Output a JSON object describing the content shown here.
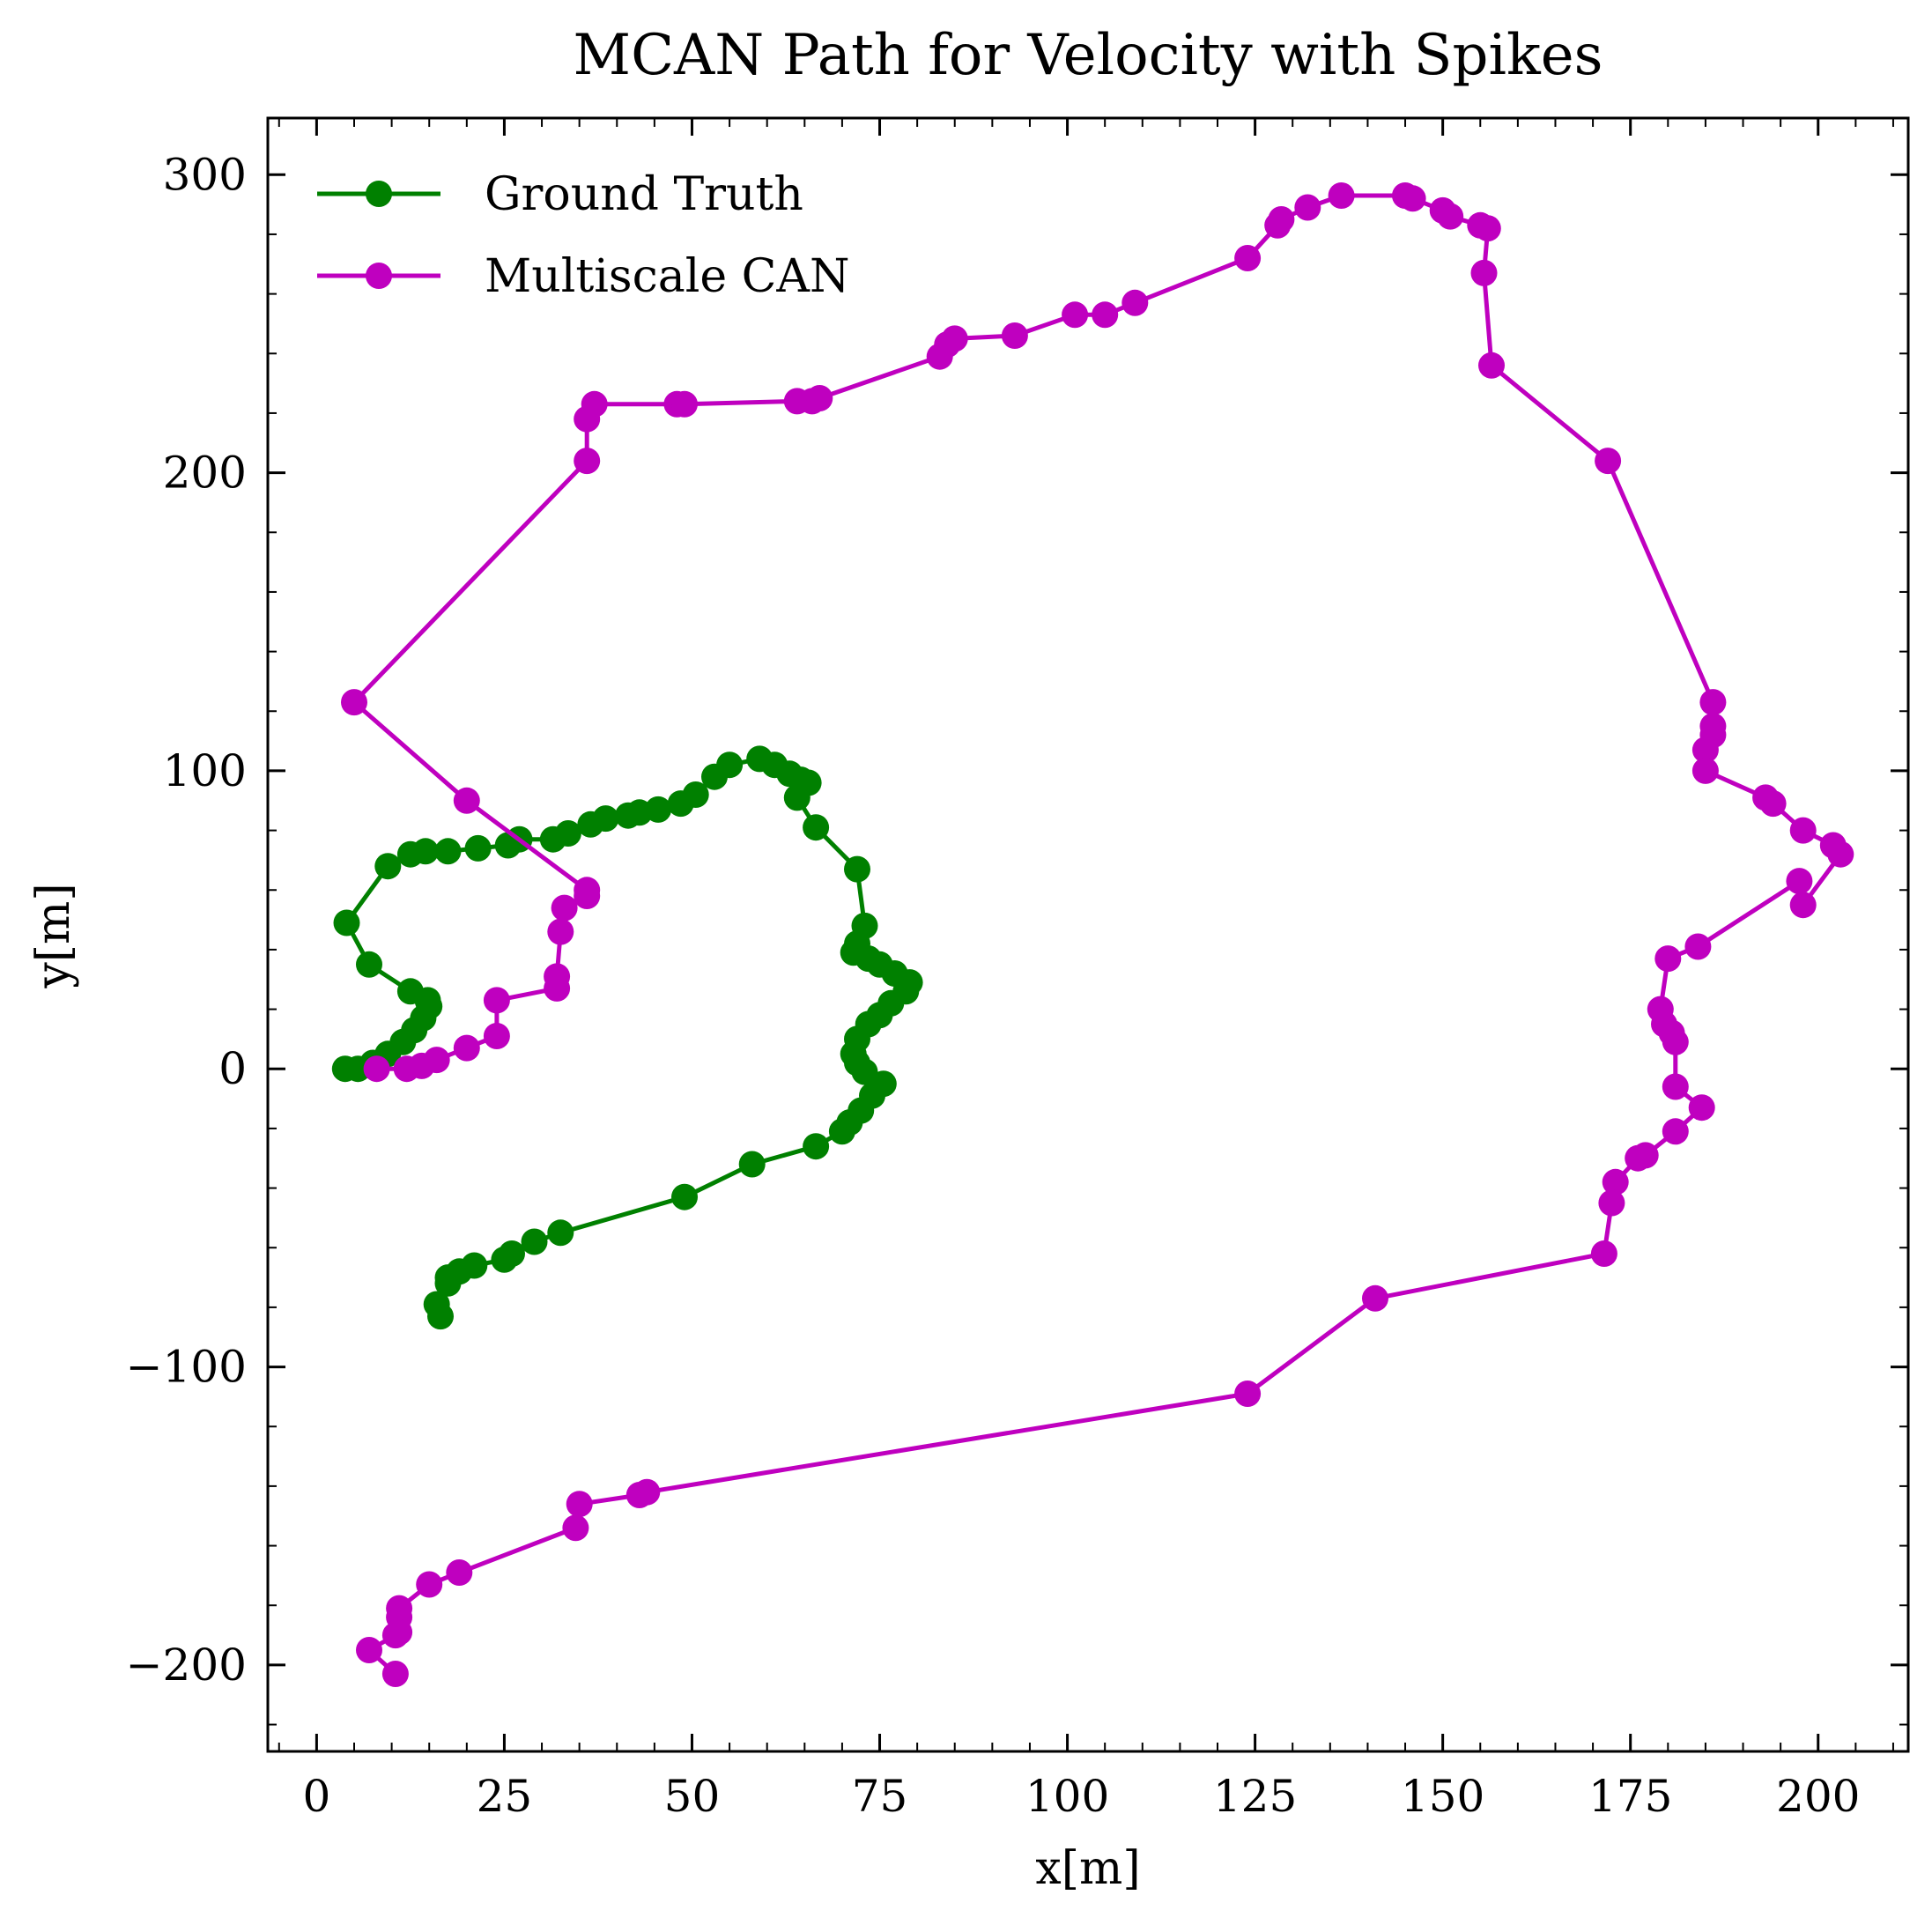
{
  "colors": {
    "ground_truth": "#008000",
    "multiscale_can": "#bf00bf",
    "axes": "#000000",
    "background": "#ffffff"
  },
  "chart_data": {
    "type": "line",
    "title": "MCAN Path for Velocity with Spikes",
    "xlabel": "x[m]",
    "ylabel": "y[m]",
    "xlim": [
      -6.5,
      212
    ],
    "ylim": [
      -229,
      319
    ],
    "xticks": [
      0,
      25,
      50,
      75,
      100,
      125,
      150,
      175,
      200
    ],
    "xtick_labels": [
      "0",
      "25",
      "50",
      "75",
      "100",
      "125",
      "150",
      "175",
      "200"
    ],
    "yticks": [
      -200,
      -100,
      0,
      100,
      200,
      300
    ],
    "ytick_labels": [
      "−200",
      "−100",
      "0",
      "100",
      "200",
      "300"
    ],
    "grid": false,
    "legend_position": "top-left",
    "markers": true,
    "series": [
      {
        "name": "Ground Truth",
        "color": "#008000",
        "x": [
          3.8,
          5.5,
          7.5,
          9.5,
          11.5,
          13.0,
          14.2,
          15.0,
          14.8,
          12.5,
          7.0,
          4.0,
          9.5,
          12.5,
          14.5,
          17.5,
          21.5,
          25.5,
          27.0,
          31.5,
          33.5,
          36.5,
          38.5,
          41.5,
          43.0,
          45.5,
          48.5,
          50.5,
          53.0,
          55.0,
          59.0,
          61.0,
          63.0,
          64.5,
          65.5,
          64.0,
          66.5,
          72.0,
          73.0,
          72.0,
          71.5,
          73.5,
          75.0,
          77.0,
          79.0,
          78.5,
          76.5,
          75.0,
          73.5,
          72.0,
          71.5,
          72.0,
          73.0,
          75.5,
          74.0,
          72.5,
          71.0,
          70.0,
          66.5,
          58.0,
          49.0,
          32.5,
          29.0,
          26.0,
          25.0,
          21.0,
          19.0,
          17.5,
          17.5,
          16.0,
          16.5
        ],
        "y": [
          0,
          0,
          2,
          5,
          9,
          13,
          17,
          21,
          23,
          26,
          35,
          49,
          68,
          72,
          73,
          73,
          74,
          75,
          77,
          77,
          79,
          82,
          84,
          85,
          86,
          87,
          89,
          92,
          98,
          102,
          104,
          102,
          99,
          97,
          96,
          91,
          81,
          67,
          48,
          42,
          39,
          37,
          35,
          32,
          29,
          26,
          22,
          18,
          15,
          10,
          5,
          2,
          -1,
          -5,
          -9,
          -14,
          -18,
          -21,
          -26,
          -32,
          -43,
          -55,
          -58,
          -62,
          -64,
          -66,
          -68,
          -70,
          -72,
          -79,
          -83
        ]
      },
      {
        "name": "Multiscale CAN",
        "color": "#bf00bf",
        "x": [
          8,
          12,
          14,
          16,
          20,
          24,
          24,
          32,
          32,
          32.5,
          33,
          36,
          36,
          20,
          5,
          36,
          36,
          37,
          48,
          49,
          64,
          66,
          67,
          83,
          84,
          85,
          93,
          101,
          105,
          109,
          124,
          128,
          128.5,
          132,
          136.5,
          145,
          146,
          150,
          151,
          155,
          156,
          155.5,
          156.5,
          172,
          186,
          186,
          186,
          185,
          185,
          193,
          194,
          198,
          202,
          203,
          198,
          197.5,
          184,
          180,
          179,
          179.5,
          180.5,
          181,
          181,
          184.5,
          181,
          177,
          176,
          173,
          172.5,
          171.5,
          141,
          124,
          44,
          43,
          35,
          34.5,
          19,
          15,
          11,
          11,
          11,
          10.5,
          7,
          10.5
        ],
        "y": [
          0,
          0,
          1,
          3,
          7,
          11,
          23,
          27,
          31,
          46,
          54,
          58,
          60,
          90,
          123,
          204,
          218,
          223,
          223,
          223,
          224,
          224,
          225,
          239,
          243,
          245,
          246,
          253,
          253,
          257,
          272,
          283,
          285,
          289,
          293,
          293,
          292,
          288,
          286,
          283,
          282,
          267,
          236,
          204,
          123,
          115,
          112,
          107,
          100,
          91,
          89,
          80,
          75,
          72,
          55,
          63,
          41,
          37,
          20,
          15,
          12,
          9,
          -6,
          -13,
          -21,
          -29,
          -30,
          -38,
          -45,
          -62,
          -77,
          -109,
          -142,
          -143,
          -146,
          -154,
          -169,
          -173,
          -181,
          -184,
          -189,
          -190,
          -195,
          -203
        ]
      }
    ]
  }
}
